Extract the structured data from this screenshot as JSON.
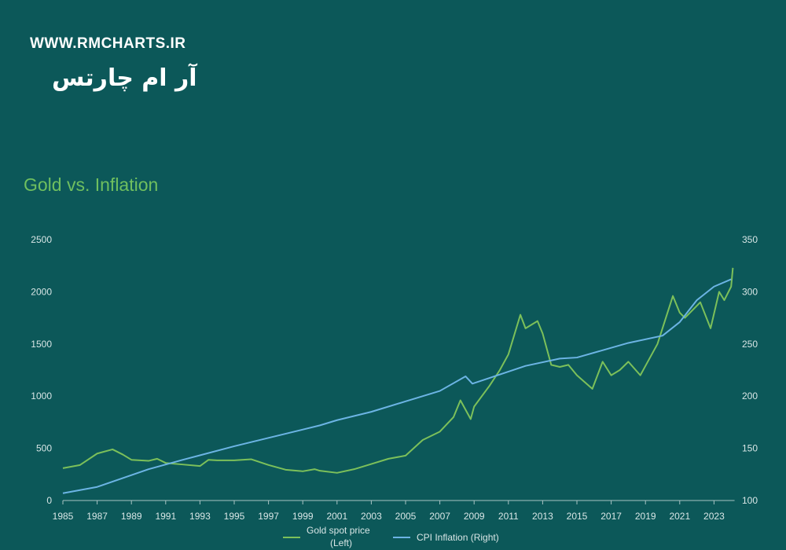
{
  "watermark": "WWW.RMCHARTS.IR",
  "watermark_fa": "آر ام چارتس",
  "chart_data": {
    "type": "line",
    "title": "Gold vs. Inflation",
    "xlim": [
      1985,
      2024.2
    ],
    "x_ticks": [
      1985,
      1987,
      1989,
      1991,
      1993,
      1995,
      1997,
      1999,
      2001,
      2003,
      2005,
      2007,
      2009,
      2011,
      2013,
      2015,
      2017,
      2019,
      2021,
      2023
    ],
    "y_left": {
      "lim": [
        0,
        2500
      ],
      "ticks": [
        0,
        500,
        1000,
        1500,
        2000,
        2500
      ]
    },
    "y_right": {
      "lim": [
        100,
        350
      ],
      "ticks": [
        100,
        150,
        200,
        250,
        300,
        350
      ]
    },
    "grid": false,
    "legend_placement": "bottom",
    "series": [
      {
        "name": "Gold spot price (Left)",
        "legend_lines": [
          "Gold spot price",
          "(Left)"
        ],
        "axis": "left",
        "color": "#7cc05a",
        "x": [
          1985,
          1986,
          1987,
          1987.9,
          1988.5,
          1989,
          1990,
          1990.5,
          1991,
          1992,
          1993,
          1993.5,
          1994,
          1995,
          1996,
          1997,
          1998,
          1999,
          1999.7,
          2000,
          2001,
          2002,
          2003,
          2004,
          2005,
          2006,
          2007,
          2007.8,
          2008.2,
          2008.8,
          2009,
          2009.9,
          2010.5,
          2011,
          2011.7,
          2012,
          2012.7,
          2013,
          2013.5,
          2014,
          2014.5,
          2015,
          2015.9,
          2016.5,
          2017,
          2017.5,
          2018,
          2018.7,
          2019,
          2019.7,
          2020.6,
          2021,
          2021.3,
          2022.2,
          2022.8,
          2023.3,
          2023.6,
          2024,
          2024.1
        ],
        "y": [
          310,
          340,
          450,
          490,
          440,
          390,
          380,
          400,
          360,
          345,
          330,
          390,
          385,
          385,
          395,
          340,
          295,
          280,
          300,
          285,
          265,
          300,
          350,
          400,
          430,
          580,
          660,
          800,
          960,
          780,
          900,
          1100,
          1250,
          1400,
          1780,
          1650,
          1720,
          1600,
          1300,
          1280,
          1300,
          1200,
          1070,
          1330,
          1200,
          1250,
          1330,
          1200,
          1290,
          1500,
          1960,
          1800,
          1750,
          1900,
          1650,
          2000,
          1920,
          2050,
          2230
        ]
      },
      {
        "name": "CPI Inflation (Right)",
        "legend_lines": [
          "CPI Inflation (Right)"
        ],
        "axis": "right",
        "color": "#6cb4e4",
        "x": [
          1985,
          1987,
          1990,
          1992,
          1995,
          1997,
          2000,
          2001,
          2003,
          2005,
          2007,
          2008.5,
          2008.9,
          2010,
          2012,
          2014,
          2015,
          2018,
          2020,
          2021,
          2022,
          2023,
          2024
        ],
        "y": [
          107,
          113,
          130,
          139,
          152,
          160,
          172,
          177,
          185,
          195,
          205,
          219,
          212,
          218,
          229,
          236,
          237,
          251,
          258,
          271,
          292,
          305,
          312
        ]
      }
    ]
  }
}
